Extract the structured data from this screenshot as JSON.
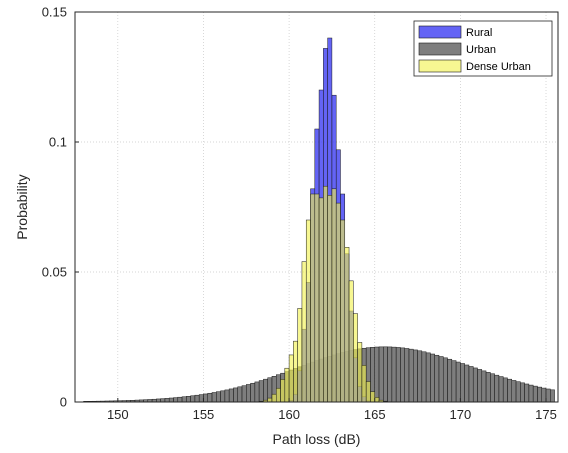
{
  "chart_data": {
    "type": "histogram",
    "xlabel": "Path loss (dB)",
    "ylabel": "Probability",
    "xlim": [
      147.5,
      175.7
    ],
    "ylim": [
      0,
      0.15
    ],
    "xticks": [
      150,
      155,
      160,
      165,
      170,
      175
    ],
    "yticks": [
      0,
      0.05,
      0.1,
      0.15
    ],
    "yticklabels": [
      "0",
      "0.05",
      "0.1",
      "0.15"
    ],
    "grid": true,
    "legend_position": "top-right",
    "bin_width": 0.25,
    "series": [
      {
        "name": "Urban",
        "color": "#5a5a5a",
        "opacity": 0.78,
        "bin_start": 148.0,
        "values": [
          0.00027,
          0.00028,
          0.0003,
          0.00033,
          0.00035,
          0.00039,
          0.00042,
          0.00046,
          0.00051,
          0.00056,
          0.00061,
          0.00067,
          0.00074,
          0.00081,
          0.00089,
          0.00098,
          0.00107,
          0.00118,
          0.00129,
          0.00141,
          0.00154,
          0.00169,
          0.00185,
          0.00202,
          0.0022,
          0.0024,
          0.00262,
          0.00285,
          0.0031,
          0.00337,
          0.00366,
          0.00397,
          0.0043,
          0.00465,
          0.00503,
          0.00542,
          0.00584,
          0.00628,
          0.00674,
          0.00722,
          0.00772,
          0.00824,
          0.00878,
          0.00933,
          0.0099,
          0.01049,
          0.01108,
          0.01169,
          0.0123,
          0.01291,
          0.01353,
          0.01414,
          0.01475,
          0.01535,
          0.01594,
          0.01651,
          0.01706,
          0.01759,
          0.0181,
          0.01858,
          0.01902,
          0.01943,
          0.01981,
          0.02014,
          0.02043,
          0.02068,
          0.02088,
          0.02104,
          0.02115,
          0.02121,
          0.02122,
          0.02119,
          0.02111,
          0.02098,
          0.02081,
          0.02059,
          0.02033,
          0.02003,
          0.01969,
          0.01931,
          0.0189,
          0.01846,
          0.01799,
          0.0175,
          0.01699,
          0.01646,
          0.01592,
          0.01537,
          0.01481,
          0.01424,
          0.01367,
          0.0131,
          0.01253,
          0.01197,
          0.01141,
          0.01086,
          0.01032,
          0.00979,
          0.00928,
          0.00878,
          0.00829,
          0.00782,
          0.00737,
          0.00693,
          0.00651,
          0.00611,
          0.00573,
          0.00536,
          0.00501,
          0.00468
        ]
      },
      {
        "name": "Rural",
        "color": "#3838f2",
        "opacity": 0.78,
        "bin_start": 158.0,
        "values": [
          0,
          0,
          0,
          0,
          0,
          0,
          0,
          0.0001,
          0.0006,
          0.003,
          0.012,
          0.028,
          0.046,
          0.082,
          0.105,
          0.12,
          0.136,
          0.14,
          0.118,
          0.097,
          0.08,
          0.057,
          0.035,
          0.017,
          0.006,
          0.002,
          0.0004,
          0,
          0,
          0,
          0,
          0
        ]
      },
      {
        "name": "Dense Urban",
        "color": "#f2f24f",
        "opacity": 0.62,
        "bin_start": 158.0,
        "values": [
          0.0001,
          0.0003,
          0.0007,
          0.0015,
          0.003,
          0.0053,
          0.0087,
          0.013,
          0.0181,
          0.0234,
          0.036,
          0.054,
          0.07,
          0.08,
          0.08,
          0.0785,
          0.083,
          0.0795,
          0.082,
          0.0765,
          0.07,
          0.0595,
          0.0466,
          0.034,
          0.0229,
          0.0141,
          0.0079,
          0.004,
          0.0018,
          0.0007,
          0.0003,
          0.0001
        ]
      }
    ],
    "legend_order": [
      "Rural",
      "Urban",
      "Dense Urban"
    ]
  }
}
